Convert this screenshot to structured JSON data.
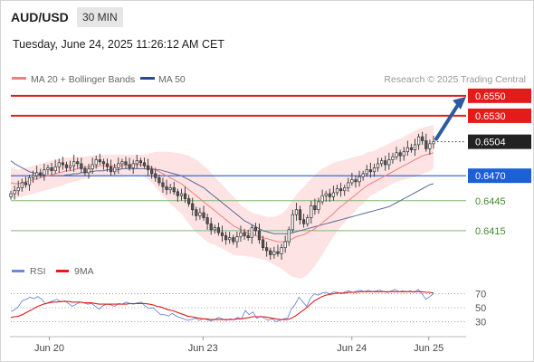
{
  "header": {
    "symbol": "AUD/USD",
    "timeframe": "30 MIN",
    "datetime": "Tuesday, June 24, 2025 11:26:12 AM CET"
  },
  "legend": {
    "ma20": "MA 20 + Bollinger Bands",
    "ma50": "MA 50",
    "source": "Research © 2025 Trading Central"
  },
  "colors": {
    "resistance": "#e31b1b",
    "support": "#1d5fd6",
    "level_light": "#7fb86e",
    "up_candle": "#ffffff",
    "down_candle": "#555555",
    "ma20_line": "#f08080",
    "bollinger_fill": "#fde3e3",
    "ma50_line": "#5a6b9a",
    "arrow": "#2c5aa0",
    "rsi_line": "#6b8bd6",
    "rsi_ma": "#e31b1b",
    "current_price": "#222222"
  },
  "chart_data": [
    {
      "type": "candlestick",
      "y_range": [
        0.6395,
        0.6558
      ],
      "current_price": 0.6504,
      "levels": [
        {
          "value": 0.655,
          "label": "0.6550",
          "kind": "resistance"
        },
        {
          "value": 0.653,
          "label": "0.6530",
          "kind": "resistance"
        },
        {
          "value": 0.6504,
          "label": "0.6504",
          "kind": "current"
        },
        {
          "value": 0.647,
          "label": "0.6470",
          "kind": "support"
        },
        {
          "value": 0.6445,
          "label": "0.6445",
          "kind": "minor"
        },
        {
          "value": 0.6415,
          "label": "0.6415",
          "kind": "minor"
        }
      ],
      "close": [
        0.6452,
        0.6455,
        0.6458,
        0.6463,
        0.6461,
        0.6468,
        0.647,
        0.6473,
        0.6471,
        0.6476,
        0.6478,
        0.6475,
        0.6479,
        0.6483,
        0.6481,
        0.6478,
        0.648,
        0.6484,
        0.6482,
        0.6477,
        0.6473,
        0.6477,
        0.6481,
        0.6486,
        0.6484,
        0.6482,
        0.6479,
        0.6474,
        0.6478,
        0.6482,
        0.6484,
        0.6481,
        0.6478,
        0.6482,
        0.6485,
        0.6483,
        0.648,
        0.6476,
        0.6472,
        0.6468,
        0.6463,
        0.6459,
        0.6456,
        0.6458,
        0.6454,
        0.645,
        0.6452,
        0.6447,
        0.6442,
        0.6436,
        0.643,
        0.6433,
        0.6428,
        0.6422,
        0.6416,
        0.6418,
        0.6413,
        0.641,
        0.6406,
        0.6408,
        0.6404,
        0.6409,
        0.6413,
        0.641,
        0.6408,
        0.6418,
        0.6415,
        0.6406,
        0.6398,
        0.6395,
        0.6391,
        0.6394,
        0.6392,
        0.6398,
        0.6404,
        0.6416,
        0.6431,
        0.6436,
        0.6426,
        0.6422,
        0.6428,
        0.644,
        0.6436,
        0.6444,
        0.645,
        0.6452,
        0.6449,
        0.6453,
        0.6457,
        0.6455,
        0.6458,
        0.6463,
        0.6466,
        0.6464,
        0.6469,
        0.6472,
        0.6476,
        0.6474,
        0.6478,
        0.6482,
        0.6485,
        0.6481,
        0.6486,
        0.6489,
        0.6493,
        0.649,
        0.6494,
        0.6498,
        0.6496,
        0.6501,
        0.6509,
        0.6505,
        0.6497,
        0.6502,
        0.6504
      ],
      "ma20": [
        0.6463,
        0.6462,
        0.6462,
        0.6463,
        0.6464,
        0.6465,
        0.6466,
        0.6467,
        0.6468,
        0.6469,
        0.647,
        0.6471,
        0.6472,
        0.6473,
        0.6474,
        0.6475,
        0.6475,
        0.6476,
        0.6477,
        0.6478,
        0.6478,
        0.6479,
        0.6479,
        0.6479,
        0.648,
        0.648,
        0.648,
        0.648,
        0.648,
        0.648,
        0.648,
        0.6481,
        0.6481,
        0.6481,
        0.6481,
        0.6481,
        0.648,
        0.6479,
        0.6478,
        0.6476,
        0.6474,
        0.6472,
        0.647,
        0.6468,
        0.6466,
        0.6464,
        0.6462,
        0.6459,
        0.6456,
        0.6453,
        0.645,
        0.6447,
        0.6444,
        0.6441,
        0.6438,
        0.6435,
        0.6432,
        0.6429,
        0.6426,
        0.6423,
        0.642,
        0.6418,
        0.6416,
        0.6414,
        0.6412,
        0.6411,
        0.641,
        0.6409,
        0.6408,
        0.6407,
        0.6406,
        0.6405,
        0.6404,
        0.6404,
        0.6404,
        0.6405,
        0.6407,
        0.6409,
        0.641,
        0.6411,
        0.6413,
        0.6415,
        0.6417,
        0.642,
        0.6423,
        0.6426,
        0.6429,
        0.6432,
        0.6436,
        0.6439,
        0.6442,
        0.6445,
        0.6448,
        0.6451,
        0.6454,
        0.6457,
        0.646,
        0.6462,
        0.6464,
        0.6466,
        0.6468,
        0.647,
        0.6472,
        0.6474,
        0.6476,
        0.6478,
        0.648,
        0.6482,
        0.6484,
        0.6486,
        0.6488,
        0.649,
        0.6491,
        0.6492,
        0.6493
      ],
      "bb_upper": [
        0.6478,
        0.6477,
        0.6476,
        0.6477,
        0.6478,
        0.6479,
        0.648,
        0.6481,
        0.6482,
        0.6483,
        0.6484,
        0.6485,
        0.6486,
        0.6487,
        0.6488,
        0.6488,
        0.6488,
        0.6489,
        0.6489,
        0.6489,
        0.6489,
        0.649,
        0.649,
        0.6491,
        0.6491,
        0.6491,
        0.6491,
        0.6491,
        0.6491,
        0.6491,
        0.6491,
        0.6491,
        0.6491,
        0.6491,
        0.6491,
        0.6491,
        0.6491,
        0.6492,
        0.6493,
        0.6494,
        0.6494,
        0.6494,
        0.6494,
        0.6494,
        0.6493,
        0.6493,
        0.6492,
        0.6491,
        0.649,
        0.6488,
        0.6486,
        0.6483,
        0.648,
        0.6477,
        0.6473,
        0.6469,
        0.6465,
        0.6461,
        0.6457,
        0.6453,
        0.6449,
        0.6445,
        0.6441,
        0.6438,
        0.6435,
        0.6433,
        0.6432,
        0.6431,
        0.643,
        0.6429,
        0.6429,
        0.6429,
        0.643,
        0.6432,
        0.6435,
        0.644,
        0.6446,
        0.6451,
        0.6455,
        0.6459,
        0.6463,
        0.6467,
        0.6471,
        0.6474,
        0.6477,
        0.6479,
        0.6481,
        0.6483,
        0.6484,
        0.6485,
        0.6486,
        0.6487,
        0.6488,
        0.6489,
        0.649,
        0.6491,
        0.6493,
        0.6494,
        0.6495,
        0.6497,
        0.6499,
        0.65,
        0.6502,
        0.6504,
        0.6506,
        0.6507,
        0.6509,
        0.6511,
        0.6513,
        0.6515,
        0.6517,
        0.6518,
        0.6519,
        0.652,
        0.6521
      ],
      "bb_lower": [
        0.6448,
        0.6447,
        0.6448,
        0.6449,
        0.645,
        0.6451,
        0.6452,
        0.6453,
        0.6454,
        0.6455,
        0.6456,
        0.6457,
        0.6458,
        0.6459,
        0.646,
        0.6462,
        0.6463,
        0.6464,
        0.6465,
        0.6466,
        0.6467,
        0.6468,
        0.6469,
        0.6469,
        0.6469,
        0.6469,
        0.6469,
        0.6469,
        0.6469,
        0.6469,
        0.6469,
        0.647,
        0.647,
        0.647,
        0.647,
        0.647,
        0.6469,
        0.6466,
        0.6463,
        0.6459,
        0.6454,
        0.645,
        0.6446,
        0.6442,
        0.6439,
        0.6435,
        0.6432,
        0.6427,
        0.6422,
        0.6417,
        0.6413,
        0.641,
        0.6407,
        0.6404,
        0.6402,
        0.6401,
        0.6399,
        0.6397,
        0.6395,
        0.6393,
        0.6391,
        0.639,
        0.639,
        0.639,
        0.6389,
        0.6389,
        0.6388,
        0.6387,
        0.6386,
        0.6385,
        0.6383,
        0.6381,
        0.6379,
        0.6377,
        0.6374,
        0.6371,
        0.6369,
        0.6368,
        0.6367,
        0.6368,
        0.6371,
        0.6375,
        0.638,
        0.6385,
        0.6391,
        0.6397,
        0.6403,
        0.6409,
        0.6414,
        0.6419,
        0.6423,
        0.6427,
        0.6431,
        0.6435,
        0.6439,
        0.6442,
        0.6446,
        0.645,
        0.6452,
        0.6454,
        0.6456,
        0.6458,
        0.646,
        0.6462,
        0.6464,
        0.6465,
        0.6466,
        0.6467,
        0.6468,
        0.6469,
        0.647,
        0.6472,
        0.6473,
        0.6475,
        0.6477
      ],
      "ma50": [
        0.6485,
        0.6482,
        0.648,
        0.6478,
        0.6476,
        0.6474,
        0.6473,
        0.6472,
        0.6471,
        0.647,
        0.647,
        0.647,
        0.647,
        0.647,
        0.647,
        0.6471,
        0.6471,
        0.6472,
        0.6472,
        0.6473,
        0.6473,
        0.6474,
        0.6474,
        0.6475,
        0.6475,
        0.6475,
        0.6476,
        0.6476,
        0.6476,
        0.6476,
        0.6477,
        0.6477,
        0.6477,
        0.6477,
        0.6477,
        0.6477,
        0.6477,
        0.6477,
        0.6477,
        0.6476,
        0.6476,
        0.6475,
        0.6474,
        0.6473,
        0.6472,
        0.6471,
        0.647,
        0.6468,
        0.6466,
        0.6464,
        0.6462,
        0.646,
        0.6458,
        0.6455,
        0.6452,
        0.6449,
        0.6446,
        0.6443,
        0.644,
        0.6437,
        0.6434,
        0.6431,
        0.6428,
        0.6425,
        0.6423,
        0.6421,
        0.6419,
        0.6417,
        0.6415,
        0.6414,
        0.6413,
        0.6412,
        0.6412,
        0.6412,
        0.6412,
        0.6412,
        0.6413,
        0.6414,
        0.6415,
        0.6416,
        0.6417,
        0.6418,
        0.6419,
        0.642,
        0.6421,
        0.6422,
        0.6423,
        0.6424,
        0.6425,
        0.6426,
        0.6427,
        0.6428,
        0.6429,
        0.643,
        0.6431,
        0.6432,
        0.6433,
        0.6434,
        0.6435,
        0.6436,
        0.6437,
        0.6438,
        0.6439,
        0.6441,
        0.6443,
        0.6445,
        0.6447,
        0.6449,
        0.6451,
        0.6453,
        0.6455,
        0.6457,
        0.6459,
        0.6461,
        0.6462
      ],
      "forecast_arrow": {
        "from": 0.6505,
        "to": 0.655
      }
    },
    {
      "type": "line",
      "name": "RSI",
      "y_range": [
        15,
        85
      ],
      "ticks": [
        {
          "value": 70,
          "label": "70"
        },
        {
          "value": 50,
          "label": "50"
        },
        {
          "value": 30,
          "label": "30"
        }
      ],
      "rsi": [
        45,
        47,
        52,
        60,
        62,
        65,
        63,
        66,
        62,
        55,
        58,
        60,
        62,
        58,
        60,
        56,
        52,
        55,
        58,
        57,
        55,
        56,
        52,
        48,
        53,
        55,
        54,
        52,
        56,
        55,
        58,
        56,
        55,
        57,
        58,
        52,
        49,
        50,
        45,
        40,
        40,
        38,
        42,
        38,
        36,
        34,
        32,
        33,
        35,
        32,
        34,
        33,
        31,
        33,
        36,
        34,
        32,
        34,
        33,
        36,
        34,
        46,
        40,
        44,
        35,
        38,
        35,
        32,
        34,
        30,
        32,
        34,
        35,
        48,
        55,
        65,
        58,
        52,
        64,
        70,
        68,
        71,
        72,
        70,
        73,
        72,
        70,
        73,
        74,
        72,
        74,
        75,
        73,
        75,
        73,
        74,
        75,
        73,
        72,
        74,
        76,
        73,
        74,
        73,
        74,
        72,
        76,
        70,
        62,
        66,
        70
      ],
      "rsi_ma": [
        36,
        37,
        38,
        40,
        43,
        46,
        49,
        52,
        54,
        56,
        57,
        58,
        58,
        59,
        59,
        59,
        58,
        58,
        58,
        57,
        57,
        57,
        56,
        55,
        55,
        55,
        55,
        55,
        55,
        55,
        55,
        56,
        56,
        56,
        56,
        56,
        55,
        54,
        52,
        51,
        49,
        47,
        46,
        44,
        42,
        40,
        38,
        37,
        36,
        35,
        34,
        34,
        33,
        33,
        33,
        33,
        33,
        33,
        33,
        34,
        34,
        35,
        36,
        37,
        37,
        37,
        37,
        36,
        35,
        34,
        33,
        33,
        33,
        35,
        38,
        42,
        46,
        50,
        55,
        60,
        63,
        66,
        68,
        69,
        70,
        71,
        71,
        71,
        72,
        72,
        72,
        73,
        73,
        73,
        73,
        73,
        73,
        73,
        73,
        73,
        73,
        73,
        73,
        73,
        73,
        73,
        73,
        73,
        72,
        72,
        71
      ]
    }
  ],
  "x_axis": {
    "labels": [
      {
        "text": "Jun 20",
        "index": 8
      },
      {
        "text": "Jun 23",
        "index": 40
      },
      {
        "text": "Jun 24",
        "index": 71
      },
      {
        "text": "Jun 25",
        "index": 87
      }
    ]
  },
  "rsi_legend": {
    "rsi": "RSI",
    "ma9": "9MA"
  }
}
